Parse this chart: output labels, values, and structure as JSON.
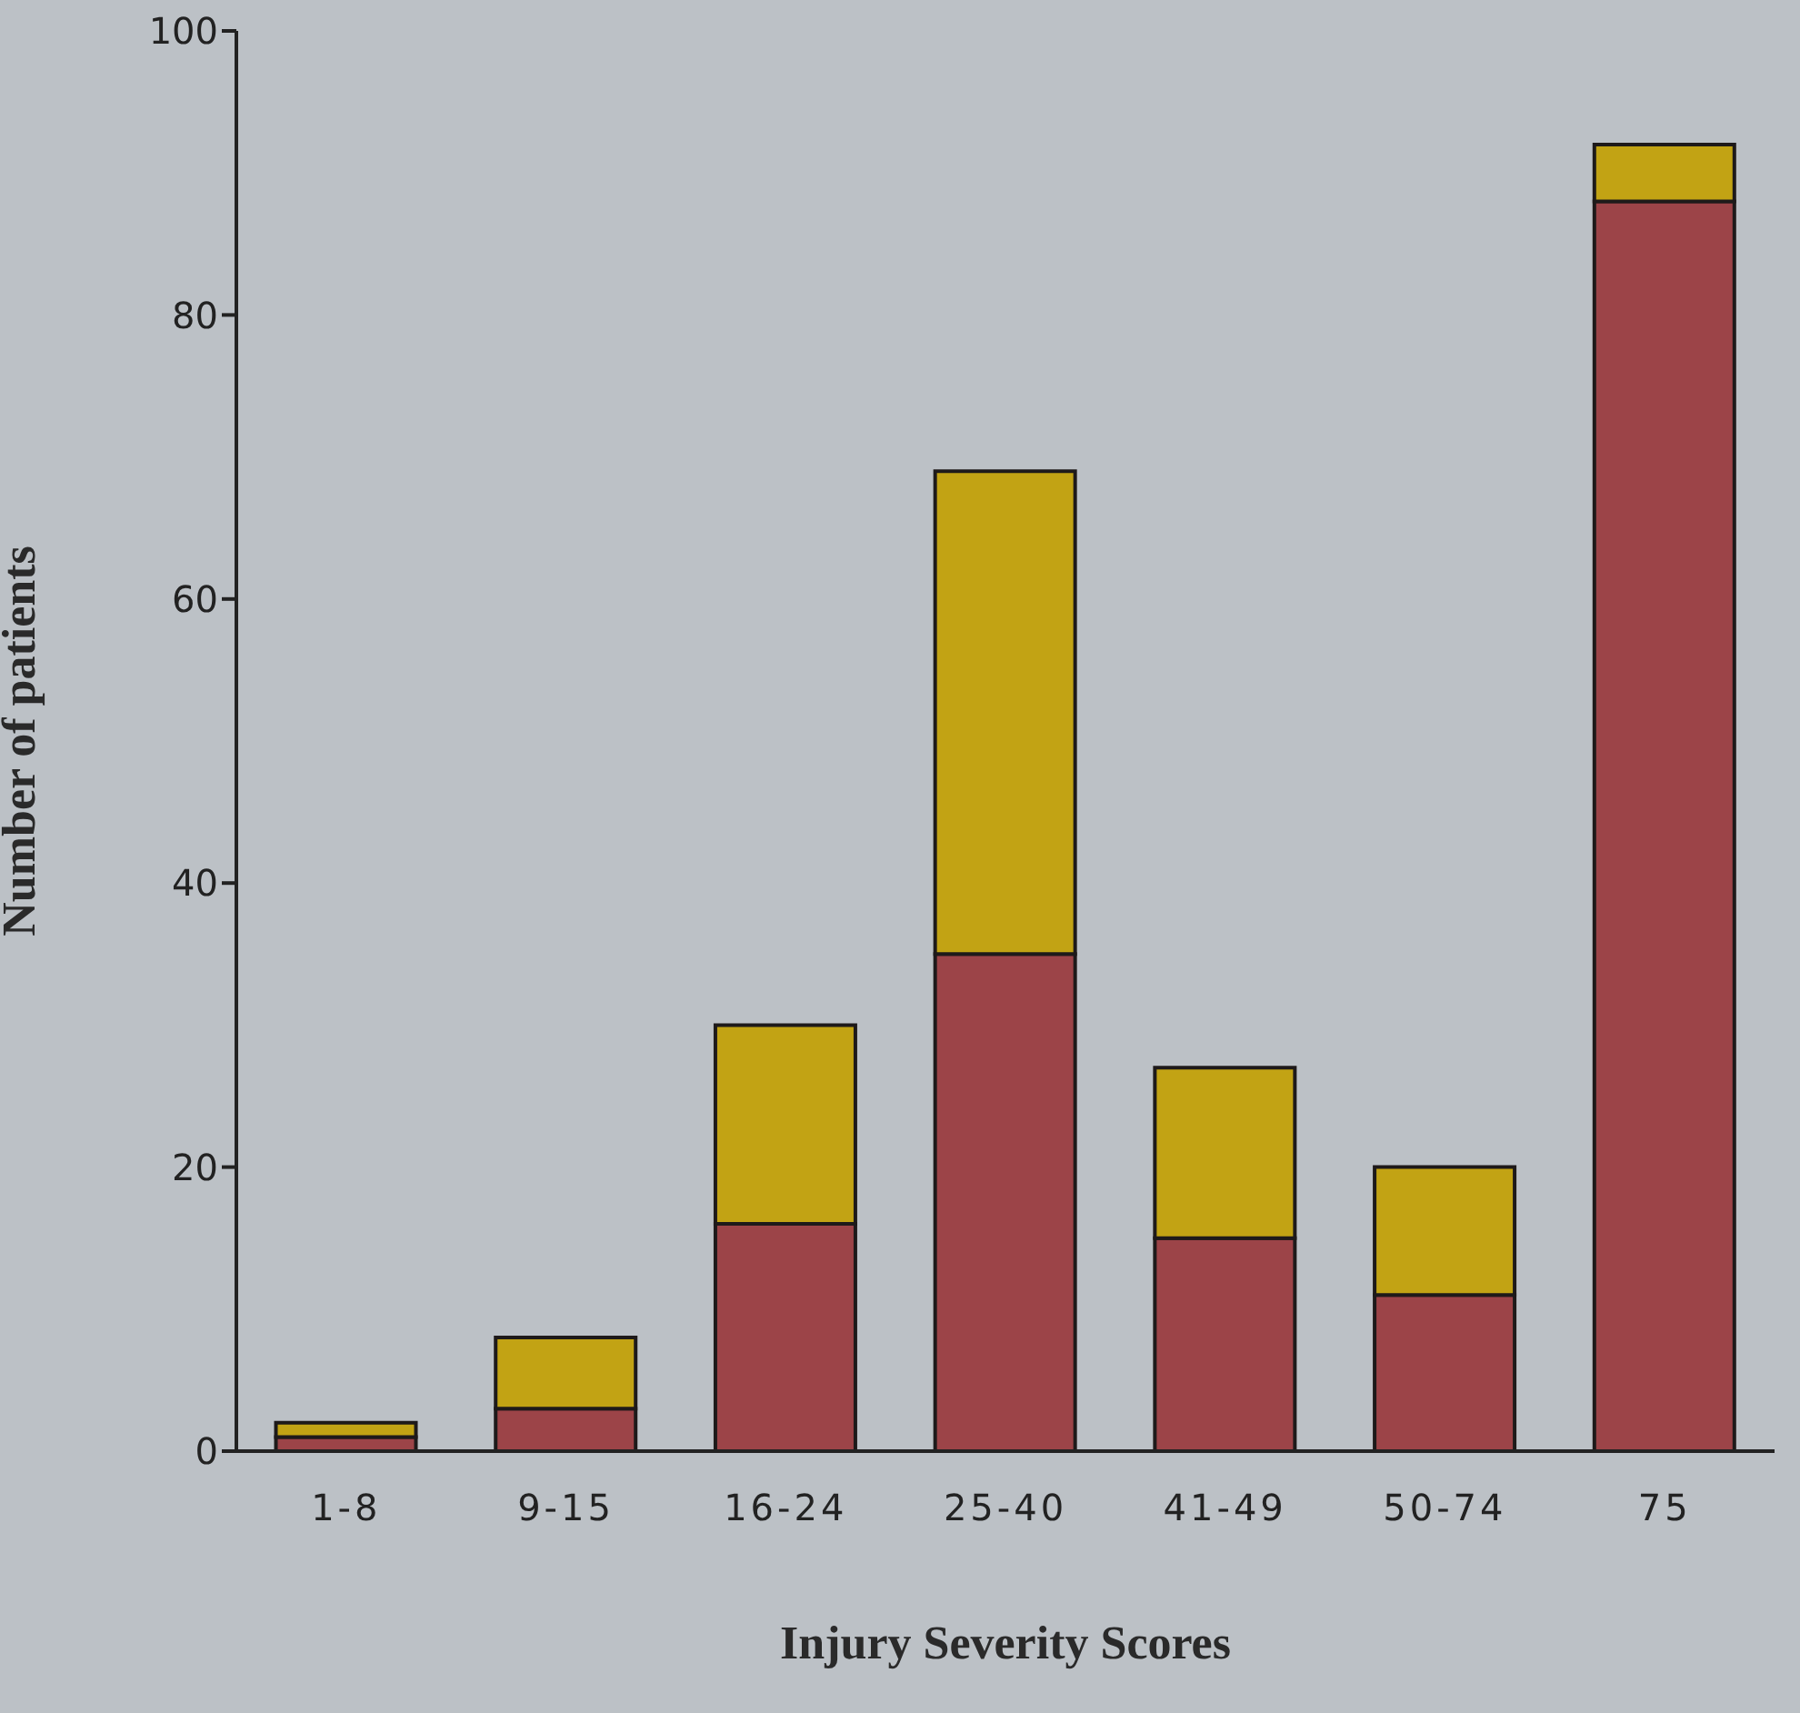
{
  "chart_data": {
    "type": "bar",
    "xlabel": "Injury Severity Scores",
    "ylabel": "Number of patients",
    "categories": [
      "1-8",
      "9-15",
      "16-24",
      "25-40",
      "41-49",
      "50-74",
      "75"
    ],
    "series": [
      {
        "color": "#9c4448",
        "values": [
          1,
          3,
          16,
          35,
          15,
          11,
          88
        ]
      },
      {
        "color": "#c2a314",
        "values": [
          1,
          5,
          14,
          34,
          12,
          9,
          4
        ]
      }
    ],
    "stacked": true,
    "ylim": [
      0,
      100
    ],
    "yticks": [
      0,
      20,
      40,
      60,
      80,
      100
    ]
  }
}
